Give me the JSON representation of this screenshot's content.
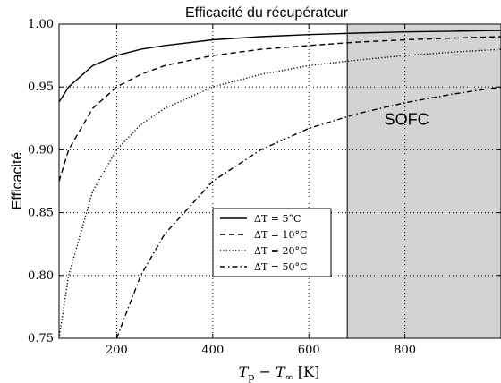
{
  "chart_data": {
    "type": "line",
    "title": "Efficacité du récupérateur",
    "xlabel": "T_p − T_∞ [K]",
    "ylabel": "Efficacité",
    "xlim": [
      80,
      1000
    ],
    "ylim": [
      0.75,
      1.0
    ],
    "xticks": [
      200,
      400,
      600,
      800
    ],
    "yticks": [
      0.75,
      0.8,
      0.85,
      0.9,
      0.95,
      1.0
    ],
    "ytick_labels": [
      "0.75",
      "0.80",
      "0.85",
      "0.90",
      "0.95",
      "1.00"
    ],
    "grid": true,
    "legend_position": "center-left",
    "shaded_region": {
      "x_start": 680,
      "x_end": 1000,
      "label": "SOFC",
      "color": "#d3d3d3"
    },
    "x": [
      80,
      100,
      150,
      200,
      250,
      300,
      400,
      500,
      600,
      700,
      800,
      900,
      1000
    ],
    "series": [
      {
        "name": "ΔT = 5°C",
        "dash": "solid",
        "values": [
          0.938,
          0.95,
          0.967,
          0.975,
          0.98,
          0.983,
          0.9875,
          0.99,
          0.9917,
          0.9929,
          0.9938,
          0.9944,
          0.995
        ]
      },
      {
        "name": "ΔT = 10°C",
        "dash": "dashed",
        "values": [
          0.875,
          0.9,
          0.933,
          0.95,
          0.96,
          0.967,
          0.975,
          0.98,
          0.983,
          0.9857,
          0.9875,
          0.9889,
          0.99
        ]
      },
      {
        "name": "ΔT = 20°C",
        "dash": "dotted",
        "values": [
          0.75,
          0.8,
          0.867,
          0.9,
          0.92,
          0.933,
          0.95,
          0.96,
          0.967,
          0.9714,
          0.975,
          0.9778,
          0.98
        ]
      },
      {
        "name": "ΔT = 50°C",
        "dash": "dashdot",
        "values": [
          null,
          null,
          null,
          0.75,
          0.8,
          0.833,
          0.875,
          0.9,
          0.917,
          0.9286,
          0.9375,
          0.9444,
          0.95
        ]
      }
    ]
  }
}
